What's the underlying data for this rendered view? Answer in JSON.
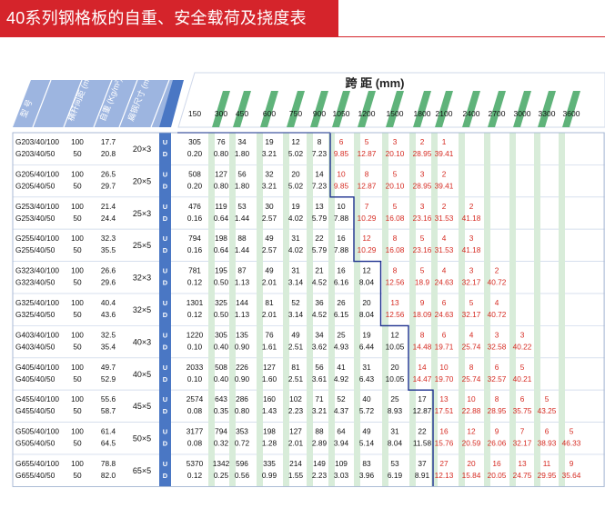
{
  "title": "40系列钢格板的自重、安全载荷及挠度表",
  "headers": {
    "model": "型 号",
    "spacing": "横杆间距 (mm)",
    "weight": "自重 (Kg/m²)",
    "bar": "扁钢尺寸 (mm)",
    "span_title": "跨    距    (mm)"
  },
  "spans": [
    "150",
    "300",
    "450",
    "600",
    "750",
    "900",
    "1050",
    "1200",
    "1500",
    "1800",
    "2100",
    "2400",
    "2700",
    "3000",
    "3300",
    "3600"
  ],
  "ud": [
    "U",
    "D"
  ],
  "rows": [
    {
      "models": [
        "G203/40/100",
        "G203/40/50"
      ],
      "spacing": [
        "100",
        "50"
      ],
      "weight": [
        "17.7",
        "20.8"
      ],
      "bar": "20×3",
      "u": [
        "305",
        "76",
        "34",
        "19",
        "12",
        "8",
        "6",
        "5",
        "3",
        "2",
        "1",
        "",
        "",
        "",
        "",
        ""
      ],
      "d": [
        "0.20",
        "0.80",
        "1.80",
        "3.21",
        "5.02",
        "7.23",
        "9.85",
        "12.87",
        "20.10",
        "28.95",
        "39.41",
        "",
        "",
        "",
        "",
        ""
      ]
    },
    {
      "models": [
        "G205/40/100",
        "G205/40/50"
      ],
      "spacing": [
        "100",
        "50"
      ],
      "weight": [
        "26.5",
        "29.7"
      ],
      "bar": "20×5",
      "u": [
        "508",
        "127",
        "56",
        "32",
        "20",
        "14",
        "10",
        "8",
        "5",
        "3",
        "2",
        "",
        "",
        "",
        "",
        ""
      ],
      "d": [
        "0.20",
        "0.80",
        "1.80",
        "3.21",
        "5.02",
        "7.23",
        "9.85",
        "12.87",
        "20.10",
        "28.95",
        "39.41",
        "",
        "",
        "",
        "",
        ""
      ]
    },
    {
      "models": [
        "G253/40/100",
        "G253/40/50"
      ],
      "spacing": [
        "100",
        "50"
      ],
      "weight": [
        "21.4",
        "24.4"
      ],
      "bar": "25×3",
      "u": [
        "476",
        "119",
        "53",
        "30",
        "19",
        "13",
        "10",
        "7",
        "5",
        "3",
        "2",
        "2",
        "",
        "",
        "",
        ""
      ],
      "d": [
        "0.16",
        "0.64",
        "1.44",
        "2.57",
        "4.02",
        "5.79",
        "7.88",
        "10.29",
        "16.08",
        "23.16",
        "31.53",
        "41.18",
        "",
        "",
        "",
        ""
      ]
    },
    {
      "models": [
        "G255/40/100",
        "G255/40/50"
      ],
      "spacing": [
        "100",
        "50"
      ],
      "weight": [
        "32.3",
        "35.5"
      ],
      "bar": "25×5",
      "u": [
        "794",
        "198",
        "88",
        "49",
        "31",
        "22",
        "16",
        "12",
        "8",
        "5",
        "4",
        "3",
        "",
        "",
        "",
        ""
      ],
      "d": [
        "0.16",
        "0.64",
        "1.44",
        "2.57",
        "4.02",
        "5.79",
        "7.88",
        "10.29",
        "16.08",
        "23.16",
        "31.53",
        "41.18",
        "",
        "",
        "",
        ""
      ]
    },
    {
      "models": [
        "G323/40/100",
        "G323/40/50"
      ],
      "spacing": [
        "100",
        "50"
      ],
      "weight": [
        "26.6",
        "29.6"
      ],
      "bar": "32×3",
      "u": [
        "781",
        "195",
        "87",
        "49",
        "31",
        "21",
        "16",
        "12",
        "8",
        "5",
        "4",
        "3",
        "2",
        "",
        "",
        ""
      ],
      "d": [
        "0.12",
        "0.50",
        "1.13",
        "2.01",
        "3.14",
        "4.52",
        "6.16",
        "8.04",
        "12.56",
        "18.9",
        "24.63",
        "32.17",
        "40.72",
        "",
        "",
        ""
      ]
    },
    {
      "models": [
        "G325/40/100",
        "G325/40/50"
      ],
      "spacing": [
        "100",
        "50"
      ],
      "weight": [
        "40.4",
        "43.6"
      ],
      "bar": "32×5",
      "u": [
        "1301",
        "325",
        "144",
        "81",
        "52",
        "36",
        "26",
        "20",
        "13",
        "9",
        "6",
        "5",
        "4",
        "",
        "",
        ""
      ],
      "d": [
        "0.12",
        "0.50",
        "1.13",
        "2.01",
        "3.14",
        "4.52",
        "6.15",
        "8.04",
        "12.56",
        "18.09",
        "24.63",
        "32.17",
        "40.72",
        "",
        "",
        ""
      ]
    },
    {
      "models": [
        "G403/40/100",
        "G403/40/50"
      ],
      "spacing": [
        "100",
        "50"
      ],
      "weight": [
        "32.5",
        "35.4"
      ],
      "bar": "40×3",
      "u": [
        "1220",
        "305",
        "135",
        "76",
        "49",
        "34",
        "25",
        "19",
        "12",
        "8",
        "6",
        "4",
        "3",
        "3",
        "",
        ""
      ],
      "d": [
        "0.10",
        "0.40",
        "0.90",
        "1.61",
        "2.51",
        "3.62",
        "4.93",
        "6.44",
        "10.05",
        "14.48",
        "19.71",
        "25.74",
        "32.58",
        "40.22",
        "",
        ""
      ]
    },
    {
      "models": [
        "G405/40/100",
        "G405/40/50"
      ],
      "spacing": [
        "100",
        "50"
      ],
      "weight": [
        "49.7",
        "52.9"
      ],
      "bar": "40×5",
      "u": [
        "2033",
        "508",
        "226",
        "127",
        "81",
        "56",
        "41",
        "31",
        "20",
        "14",
        "10",
        "8",
        "6",
        "5",
        "",
        ""
      ],
      "d": [
        "0.10",
        "0.40",
        "0.90",
        "1.60",
        "2.51",
        "3.61",
        "4.92",
        "6.43",
        "10.05",
        "14.47",
        "19.70",
        "25.74",
        "32.57",
        "40.21",
        "",
        ""
      ]
    },
    {
      "models": [
        "G455/40/100",
        "G455/40/50"
      ],
      "spacing": [
        "100",
        "50"
      ],
      "weight": [
        "55.6",
        "58.7"
      ],
      "bar": "45×5",
      "u": [
        "2574",
        "643",
        "286",
        "160",
        "102",
        "71",
        "52",
        "40",
        "25",
        "17",
        "13",
        "10",
        "8",
        "6",
        "5",
        ""
      ],
      "d": [
        "0.08",
        "0.35",
        "0.80",
        "1.43",
        "2.23",
        "3.21",
        "4.37",
        "5.72",
        "8.93",
        "12.87",
        "17.51",
        "22.88",
        "28.95",
        "35.75",
        "43.25",
        ""
      ]
    },
    {
      "models": [
        "G505/40/100",
        "G505/40/50"
      ],
      "spacing": [
        "100",
        "50"
      ],
      "weight": [
        "61.4",
        "64.5"
      ],
      "bar": "50×5",
      "u": [
        "3177",
        "794",
        "353",
        "198",
        "127",
        "88",
        "64",
        "49",
        "31",
        "22",
        "16",
        "12",
        "9",
        "7",
        "6",
        "5"
      ],
      "d": [
        "0.08",
        "0.32",
        "0.72",
        "1.28",
        "2.01",
        "2.89",
        "3.94",
        "5.14",
        "8.04",
        "11.58",
        "15.76",
        "20.59",
        "26.06",
        "32.17",
        "38.93",
        "46.33"
      ]
    },
    {
      "models": [
        "G655/40/100",
        "G655/40/50"
      ],
      "spacing": [
        "100",
        "50"
      ],
      "weight": [
        "78.8",
        "82.0"
      ],
      "bar": "65×5",
      "u": [
        "5370",
        "1342",
        "596",
        "335",
        "214",
        "149",
        "109",
        "83",
        "53",
        "37",
        "27",
        "20",
        "16",
        "13",
        "11",
        "9"
      ],
      "d": [
        "0.12",
        "0.25",
        "0.56",
        "0.99",
        "1.55",
        "2.23",
        "3.03",
        "3.96",
        "6.19",
        "8.91",
        "12.13",
        "15.84",
        "20.05",
        "24.75",
        "29.95",
        "35.64"
      ]
    }
  ],
  "colors": {
    "title_bg": "#d5242b",
    "header_band": "#8ea9db",
    "green": "#4ea66a",
    "blue_stripe": "#4a77c4",
    "red_text": "#d62b22",
    "staircase": "#1b2f8e"
  }
}
